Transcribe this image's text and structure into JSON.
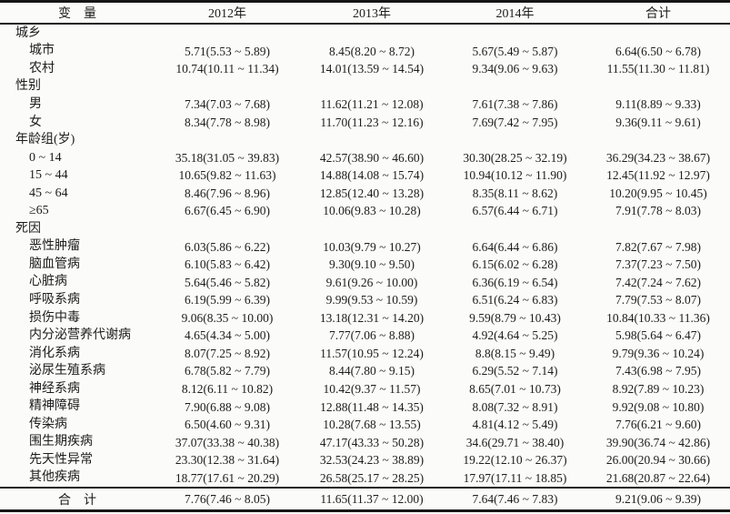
{
  "table": {
    "columns": [
      "变　量",
      "2012年",
      "2013年",
      "2014年",
      "合计"
    ],
    "rows": [
      {
        "label": "城乡",
        "type": "group",
        "values": [
          "",
          "",
          "",
          ""
        ]
      },
      {
        "label": "城市",
        "type": "item",
        "values": [
          "5.71(5.53 ~ 5.89)",
          "8.45(8.20 ~ 8.72)",
          "5.67(5.49 ~ 5.87)",
          "6.64(6.50 ~ 6.78)"
        ]
      },
      {
        "label": "农村",
        "type": "item",
        "values": [
          "10.74(10.11 ~ 11.34)",
          "14.01(13.59 ~ 14.54)",
          "9.34(9.06 ~ 9.63)",
          "11.55(11.30 ~ 11.81)"
        ]
      },
      {
        "label": "性别",
        "type": "group",
        "values": [
          "",
          "",
          "",
          ""
        ]
      },
      {
        "label": "男",
        "type": "item",
        "values": [
          "7.34(7.03 ~ 7.68)",
          "11.62(11.21 ~ 12.08)",
          "7.61(7.38 ~ 7.86)",
          "9.11(8.89 ~ 9.33)"
        ]
      },
      {
        "label": "女",
        "type": "item",
        "values": [
          "8.34(7.78 ~ 8.98)",
          "11.70(11.23 ~ 12.16)",
          "7.69(7.42 ~ 7.95)",
          "9.36(9.11 ~ 9.61)"
        ]
      },
      {
        "label": "年龄组(岁)",
        "type": "group",
        "values": [
          "",
          "",
          "",
          ""
        ]
      },
      {
        "label": "0 ~ 14",
        "type": "item",
        "values": [
          "35.18(31.05 ~ 39.83)",
          "42.57(38.90 ~ 46.60)",
          "30.30(28.25 ~ 32.19)",
          "36.29(34.23 ~ 38.67)"
        ]
      },
      {
        "label": "15 ~ 44",
        "type": "item",
        "values": [
          "10.65(9.82 ~ 11.63)",
          "14.88(14.08 ~ 15.74)",
          "10.94(10.12 ~ 11.90)",
          "12.45(11.92 ~ 12.97)"
        ]
      },
      {
        "label": "45 ~ 64",
        "type": "item",
        "values": [
          "8.46(7.96 ~ 8.96)",
          "12.85(12.40 ~ 13.28)",
          "8.35(8.11 ~ 8.62)",
          "10.20(9.95 ~ 10.45)"
        ]
      },
      {
        "label": "≥65",
        "type": "item",
        "values": [
          "6.67(6.45 ~ 6.90)",
          "10.06(9.83 ~ 10.28)",
          "6.57(6.44 ~ 6.71)",
          "7.91(7.78 ~ 8.03)"
        ]
      },
      {
        "label": "死因",
        "type": "group",
        "values": [
          "",
          "",
          "",
          ""
        ]
      },
      {
        "label": "恶性肿瘤",
        "type": "item",
        "values": [
          "6.03(5.86 ~ 6.22)",
          "10.03(9.79 ~ 10.27)",
          "6.64(6.44 ~ 6.86)",
          "7.82(7.67 ~ 7.98)"
        ]
      },
      {
        "label": "脑血管病",
        "type": "item",
        "values": [
          "6.10(5.83 ~ 6.42)",
          "9.30(9.10 ~ 9.50)",
          "6.15(6.02 ~ 6.28)",
          "7.37(7.23 ~ 7.50)"
        ]
      },
      {
        "label": "心脏病",
        "type": "item",
        "values": [
          "5.64(5.46 ~ 5.82)",
          "9.61(9.26 ~ 10.00)",
          "6.36(6.19 ~ 6.54)",
          "7.42(7.24 ~ 7.62)"
        ]
      },
      {
        "label": "呼吸系病",
        "type": "item",
        "values": [
          "6.19(5.99 ~ 6.39)",
          "9.99(9.53 ~ 10.59)",
          "6.51(6.24 ~ 6.83)",
          "7.79(7.53 ~ 8.07)"
        ]
      },
      {
        "label": "损伤中毒",
        "type": "item",
        "values": [
          "9.06(8.35 ~ 10.00)",
          "13.18(12.31 ~ 14.20)",
          "9.59(8.79 ~ 10.43)",
          "10.84(10.33 ~ 11.36)"
        ]
      },
      {
        "label": "内分泌营养代谢病",
        "type": "item",
        "values": [
          "4.65(4.34 ~ 5.00)",
          "7.77(7.06 ~ 8.88)",
          "4.92(4.64 ~ 5.25)",
          "5.98(5.64 ~ 6.47)"
        ]
      },
      {
        "label": "消化系病",
        "type": "item",
        "values": [
          "8.07(7.25 ~ 8.92)",
          "11.57(10.95 ~ 12.24)",
          "8.8(8.15 ~ 9.49)",
          "9.79(9.36 ~ 10.24)"
        ]
      },
      {
        "label": "泌尿生殖系病",
        "type": "item",
        "values": [
          "6.78(5.82 ~ 7.79)",
          "8.44(7.80 ~ 9.15)",
          "6.29(5.52 ~ 7.14)",
          "7.43(6.98 ~ 7.95)"
        ]
      },
      {
        "label": "神经系病",
        "type": "item",
        "values": [
          "8.12(6.11 ~ 10.82)",
          "10.42(9.37 ~ 11.57)",
          "8.65(7.01 ~ 10.73)",
          "8.92(7.89 ~ 10.23)"
        ]
      },
      {
        "label": "精神障碍",
        "type": "item",
        "values": [
          "7.90(6.88 ~ 9.08)",
          "12.88(11.48 ~ 14.35)",
          "8.08(7.32 ~ 8.91)",
          "9.92(9.08 ~ 10.80)"
        ]
      },
      {
        "label": "传染病",
        "type": "item",
        "values": [
          "6.50(4.60 ~ 9.31)",
          "10.28(7.68 ~ 13.55)",
          "4.81(4.12 ~ 5.49)",
          "7.76(6.21 ~ 9.60)"
        ]
      },
      {
        "label": "围生期疾病",
        "type": "item",
        "values": [
          "37.07(33.38 ~ 40.38)",
          "47.17(43.33 ~ 50.28)",
          "34.6(29.71 ~ 38.40)",
          "39.90(36.74 ~ 42.86)"
        ]
      },
      {
        "label": "先天性异常",
        "type": "item",
        "values": [
          "23.30(12.38 ~ 31.64)",
          "32.53(24.23 ~ 38.89)",
          "19.22(12.10 ~ 26.37)",
          "26.00(20.94 ~ 30.66)"
        ]
      },
      {
        "label": "其他疾病",
        "type": "item",
        "values": [
          "18.77(17.61 ~ 20.29)",
          "26.58(25.17 ~ 28.25)",
          "17.97(17.11 ~ 18.85)",
          "21.68(20.87 ~ 22.64)"
        ]
      }
    ],
    "footer": {
      "label": "合　计",
      "values": [
        "7.76(7.46 ~ 8.05)",
        "11.65(11.37 ~ 12.00)",
        "7.64(7.46 ~ 7.83)",
        "9.21(9.06 ~ 9.39)"
      ]
    }
  }
}
